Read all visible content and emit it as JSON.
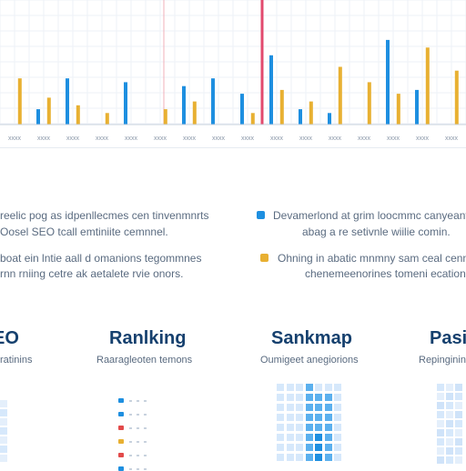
{
  "theme": {
    "blue": "#1e8fe0",
    "orange": "#e8b032",
    "red": "#e24a6e",
    "light_blue": "#d6e8fb",
    "grid": "#eef2f7"
  },
  "chart_data": {
    "type": "bar",
    "categories": [
      "xxxx",
      "xxxx",
      "xxxx",
      "xxxx",
      "xxxx",
      "xxxx",
      "xxxx",
      "xxxx",
      "xxxx",
      "xxxx",
      "xxxx",
      "xxxx",
      "xxxx",
      "xxxx",
      "xxxx",
      "xxxx"
    ],
    "series": [
      {
        "values": [
          0,
          4,
          12,
          0,
          11,
          0,
          10,
          12,
          8,
          18,
          4,
          3,
          0,
          22,
          9,
          0
        ]
      },
      {
        "values": [
          12,
          7,
          5,
          3,
          0,
          4,
          6,
          0,
          3,
          9,
          6,
          15,
          11,
          8,
          20,
          14
        ]
      }
    ],
    "highlights": [
      "x=0.35",
      "x=0.56"
    ],
    "ylim": [
      0,
      30
    ],
    "grid": true
  },
  "description": {
    "left_lines": [
      "reelic pog as idpenllecmes cen tinvenmnrts",
      "Oosel SEO tcall emtiniite cemnnel.",
      "boat ein lntie aall d omanions tegommnes",
      "rnn rniing cetre ak aetalete rvie onors."
    ],
    "right_items": [
      {
        "color": "blue",
        "lines": [
          "Devamerlond at grim loocmmc canyeant",
          "abag a re setivnle wiilie comin."
        ]
      },
      {
        "color": "orange",
        "lines": [
          "Ohning in abatic mnmny sam ceal cenn",
          "chenemeenorines tomeni ecations."
        ]
      }
    ]
  },
  "cards": [
    {
      "title": "EO",
      "subtitle": "ratinins",
      "visual": "heat"
    },
    {
      "title": "Ranlking",
      "subtitle": "Raaragleoten temons",
      "visual": "dots"
    },
    {
      "title": "Sankmap",
      "subtitle": "Oumigeet anegiorions",
      "visual": "matrix"
    },
    {
      "title": "Pasi",
      "subtitle": "Repinginins",
      "visual": "heat"
    }
  ]
}
